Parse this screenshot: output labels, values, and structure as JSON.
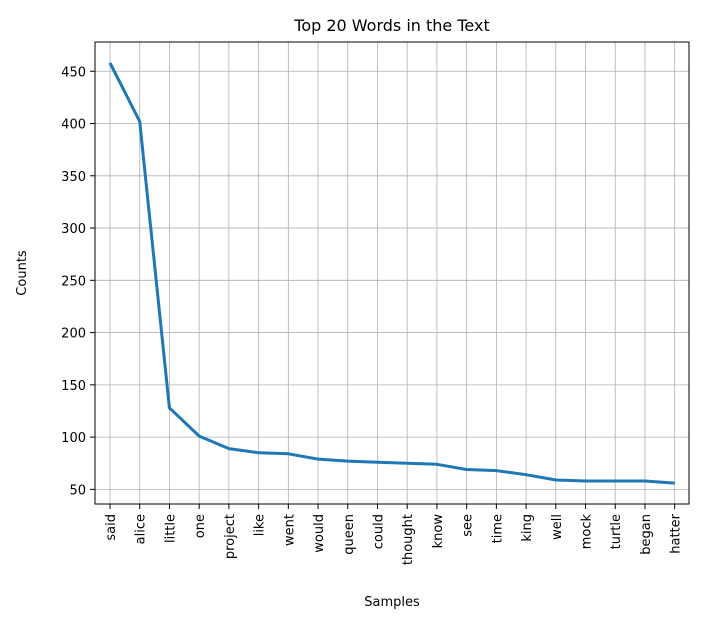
{
  "chart_data": {
    "type": "line",
    "title": "Top 20 Words in the Text",
    "xlabel": "Samples",
    "ylabel": "Counts",
    "categories": [
      "said",
      "alice",
      "little",
      "one",
      "project",
      "like",
      "went",
      "would",
      "queen",
      "could",
      "thought",
      "know",
      "see",
      "time",
      "king",
      "well",
      "mock",
      "turtle",
      "began",
      "hatter"
    ],
    "values": [
      458,
      402,
      128,
      101,
      89,
      85,
      84,
      79,
      77,
      76,
      75,
      74,
      69,
      68,
      64,
      59,
      58,
      58,
      58,
      56
    ],
    "yticks": [
      50,
      100,
      150,
      200,
      250,
      300,
      350,
      400,
      450
    ],
    "ylim": [
      36,
      478
    ],
    "grid": true,
    "line_color": "#1f77b4"
  }
}
